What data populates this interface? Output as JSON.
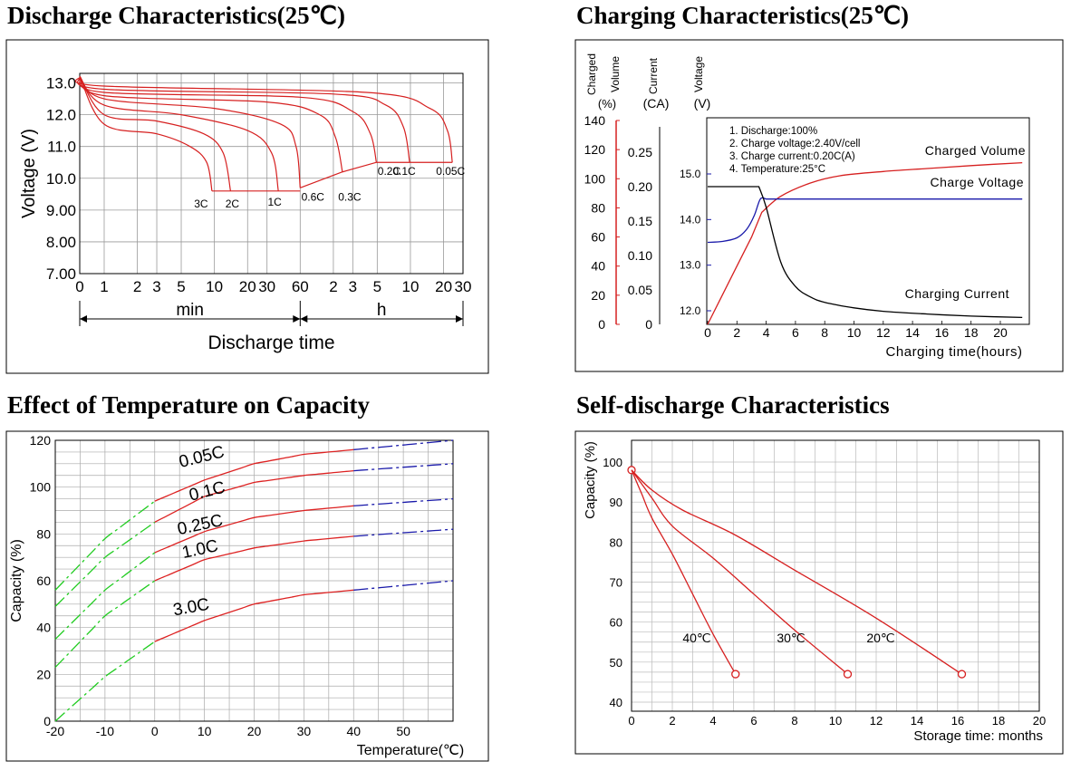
{
  "titles": {
    "discharge": "Discharge Characteristics(25℃)",
    "charging": "Charging Characteristics(25℃)",
    "temperature": "Effect of Temperature on Capacity",
    "selfdischarge": "Self-discharge Characteristics"
  },
  "chart_data": [
    {
      "id": "discharge",
      "type": "line",
      "title": "Discharge Characteristics(25℃)",
      "ylabel": "Voltage (V)",
      "xlabel": "Discharge time",
      "x_scale": "log",
      "x_unit_labels": [
        "min",
        "h"
      ],
      "ylim": [
        7.0,
        13.3
      ],
      "y_ticks": [
        "7.00",
        "8.00",
        "9.00",
        "10.0",
        "11.0",
        "12.0",
        "13.0"
      ],
      "y_tick_values": [
        7,
        8,
        9,
        10,
        11,
        12,
        13
      ],
      "x_ticks": [
        "0",
        "1",
        "2",
        "3",
        "5",
        "10",
        "20",
        "30",
        "60",
        "2",
        "3",
        "5",
        "10",
        "20",
        "30"
      ],
      "x_tick_minutes": [
        0.6,
        1,
        2,
        3,
        5,
        10,
        20,
        30,
        60,
        120,
        180,
        300,
        600,
        1200,
        1800
      ],
      "grid": true,
      "series": [
        {
          "name": "3C",
          "label": "3C",
          "x_minutes": [
            0.6,
            1,
            3,
            6,
            8.5,
            9.5
          ],
          "y": [
            13.2,
            11.7,
            11.4,
            11.0,
            10.5,
            9.6
          ]
        },
        {
          "name": "2C",
          "label": "2C",
          "x_minutes": [
            0.6,
            1,
            3,
            8,
            12,
            14
          ],
          "y": [
            13.2,
            12.0,
            11.8,
            11.4,
            10.8,
            9.6
          ]
        },
        {
          "name": "1C",
          "label": "1C",
          "x_minutes": [
            0.6,
            1,
            5,
            20,
            33,
            38
          ],
          "y": [
            13.2,
            12.3,
            12.0,
            11.5,
            10.8,
            9.6
          ]
        },
        {
          "name": "0.6C",
          "label": "0.6C",
          "x_minutes": [
            0.6,
            1,
            10,
            40,
            55,
            60
          ],
          "y": [
            13.2,
            12.5,
            12.2,
            11.7,
            11.0,
            9.7
          ]
        },
        {
          "name": "0.3C",
          "label": "0.3C",
          "x_minutes": [
            0.6,
            1,
            30,
            90,
            125,
            145
          ],
          "y": [
            13.2,
            12.6,
            12.4,
            12.0,
            11.3,
            10.2
          ]
        },
        {
          "name": "0.2C",
          "label": "0.2C",
          "x_minutes": [
            0.6,
            1,
            60,
            180,
            260,
            295
          ],
          "y": [
            13.2,
            12.7,
            12.55,
            12.1,
            11.4,
            10.5
          ]
        },
        {
          "name": "0.1C",
          "label": "0.1C",
          "x_minutes": [
            0.6,
            1,
            120,
            360,
            520,
            590
          ],
          "y": [
            13.2,
            12.8,
            12.65,
            12.3,
            11.6,
            10.5
          ]
        },
        {
          "name": "0.05C",
          "label": "0.05C",
          "x_minutes": [
            0.6,
            1,
            240,
            900,
            1300,
            1440
          ],
          "y": [
            13.2,
            12.9,
            12.7,
            12.2,
            11.5,
            10.5
          ]
        }
      ]
    },
    {
      "id": "charging",
      "type": "line",
      "title": "Charging Characteristics(25℃)",
      "xlabel": "Charging time(hours)",
      "xlim": [
        0,
        21.5
      ],
      "x_ticks": [
        0,
        2,
        4,
        6,
        8,
        10,
        12,
        14,
        16,
        18,
        20
      ],
      "axes": [
        {
          "label_lines": [
            "Charged",
            "Volume",
            "(%)"
          ],
          "ticks": [
            "0",
            "20",
            "40",
            "60",
            "80",
            "100",
            "120",
            "140"
          ],
          "values": [
            0,
            20,
            40,
            60,
            80,
            100,
            120,
            140
          ]
        },
        {
          "label_lines": [
            "Current",
            "(CA)"
          ],
          "ticks": [
            "0",
            "0.05",
            "0.10",
            "0.15",
            "0.20",
            "0.25"
          ],
          "values": [
            0,
            0.05,
            0.1,
            0.15,
            0.2,
            0.25
          ]
        },
        {
          "label_lines": [
            "Voltage",
            "(V)"
          ],
          "ticks": [
            "12.0",
            "13.0",
            "14.0",
            "15.0"
          ],
          "values": [
            12.0,
            13.0,
            14.0,
            15.0
          ]
        }
      ],
      "notes": [
        "1. Discharge:100%",
        "2. Charge voltage:2.40V/cell",
        "3. Charge current:0.20C(A)",
        "4. Temperature:25°C"
      ],
      "series": [
        {
          "name": "Charged Volume",
          "label": "Charged Volume",
          "x": [
            0,
            1,
            2,
            3,
            3.7,
            5,
            7,
            9,
            12,
            15,
            18,
            21.5
          ],
          "y": [
            0,
            20,
            40,
            60,
            77,
            88,
            97,
            102,
            105,
            107,
            109,
            111
          ]
        },
        {
          "name": "Charge Voltage",
          "label": "Charge Voltage",
          "x": [
            0,
            1,
            2,
            2.7,
            3.2,
            3.6,
            4,
            6,
            10,
            21.5
          ],
          "y": [
            13.5,
            13.52,
            13.6,
            13.8,
            14.1,
            14.45,
            14.45,
            14.45,
            14.45,
            14.45
          ]
        },
        {
          "name": "Charging Current",
          "label": "Charging Current",
          "x": [
            0,
            3.5,
            4,
            5,
            6,
            7,
            8,
            10,
            12,
            15,
            18,
            21.5
          ],
          "y": [
            0.2,
            0.2,
            0.17,
            0.09,
            0.055,
            0.04,
            0.032,
            0.024,
            0.019,
            0.015,
            0.012,
            0.01
          ]
        }
      ]
    },
    {
      "id": "temperature",
      "type": "line",
      "title": "Effect of Temperature on Capacity",
      "ylabel": "Capacity (%)",
      "xlabel": "Temperature(℃)",
      "xlim": [
        -20,
        60
      ],
      "ylim": [
        0,
        120
      ],
      "x_ticks": [
        "-20",
        "-10",
        "0",
        "10",
        "20",
        "30",
        "40",
        "50"
      ],
      "x_tick_values": [
        -20,
        -10,
        0,
        10,
        20,
        30,
        40,
        50
      ],
      "y_ticks": [
        "0",
        "20",
        "40",
        "60",
        "80",
        "100",
        "120"
      ],
      "y_tick_values": [
        0,
        20,
        40,
        60,
        80,
        100,
        120
      ],
      "grid": true,
      "colors": {
        "cold": "#22cc22",
        "mid": "#dd2222",
        "hot": "#1a1aaa"
      },
      "series": [
        {
          "name": "0.05C",
          "label": "0.05C",
          "x": [
            -20,
            -10,
            0,
            10,
            20,
            30,
            40,
            50,
            60
          ],
          "y": [
            56,
            78,
            94,
            103,
            110,
            114,
            116,
            118,
            120
          ]
        },
        {
          "name": "0.1C",
          "label": "0.1C",
          "x": [
            -20,
            -10,
            0,
            10,
            20,
            30,
            40,
            50,
            60
          ],
          "y": [
            49,
            70,
            85,
            96,
            102,
            105,
            107,
            108.5,
            110
          ]
        },
        {
          "name": "0.25C",
          "label": "0.25C",
          "x": [
            -20,
            -10,
            0,
            10,
            20,
            30,
            40,
            50,
            60
          ],
          "y": [
            35,
            56,
            72,
            81,
            87,
            90,
            92,
            93.5,
            95
          ]
        },
        {
          "name": "1.0C",
          "label": "1.0C",
          "x": [
            -20,
            -10,
            0,
            10,
            20,
            30,
            40,
            50,
            60
          ],
          "y": [
            23,
            45,
            60,
            69,
            74,
            77,
            79,
            80.5,
            82
          ]
        },
        {
          "name": "3.0C",
          "label": "3.0C",
          "x": [
            -20,
            -10,
            0,
            10,
            20,
            30,
            40,
            50,
            60
          ],
          "y": [
            0,
            19,
            34,
            43,
            50,
            54,
            56,
            58,
            60
          ]
        }
      ]
    },
    {
      "id": "selfdischarge",
      "type": "line",
      "title": "Self-discharge Characteristics",
      "ylabel": "Capacity (%)",
      "xlabel": "Storage time: months",
      "xlim": [
        0,
        20
      ],
      "ylim": [
        40,
        100
      ],
      "x_ticks": [
        "0",
        "2",
        "4",
        "6",
        "8",
        "10",
        "12",
        "14",
        "16",
        "18",
        "20"
      ],
      "x_tick_values": [
        0,
        2,
        4,
        6,
        8,
        10,
        12,
        14,
        16,
        18,
        20
      ],
      "y_ticks": [
        "40",
        "50",
        "60",
        "70",
        "80",
        "90",
        "100"
      ],
      "y_tick_values": [
        40,
        50,
        60,
        70,
        80,
        90,
        100
      ],
      "grid": true,
      "series": [
        {
          "name": "40℃",
          "label": "40℃",
          "x": [
            0,
            0.5,
            1,
            2,
            3,
            4,
            5.1
          ],
          "y": [
            98,
            92,
            86,
            77,
            67,
            57,
            47
          ]
        },
        {
          "name": "30℃",
          "label": "30℃",
          "x": [
            0,
            1,
            2,
            4,
            6,
            8,
            10.6
          ],
          "y": [
            98,
            91,
            84,
            76,
            67,
            58,
            47
          ]
        },
        {
          "name": "20℃",
          "label": "20℃",
          "x": [
            0,
            1,
            2.5,
            5,
            8,
            12,
            16.2
          ],
          "y": [
            98,
            93,
            88,
            82,
            73,
            61,
            47
          ]
        }
      ]
    }
  ]
}
